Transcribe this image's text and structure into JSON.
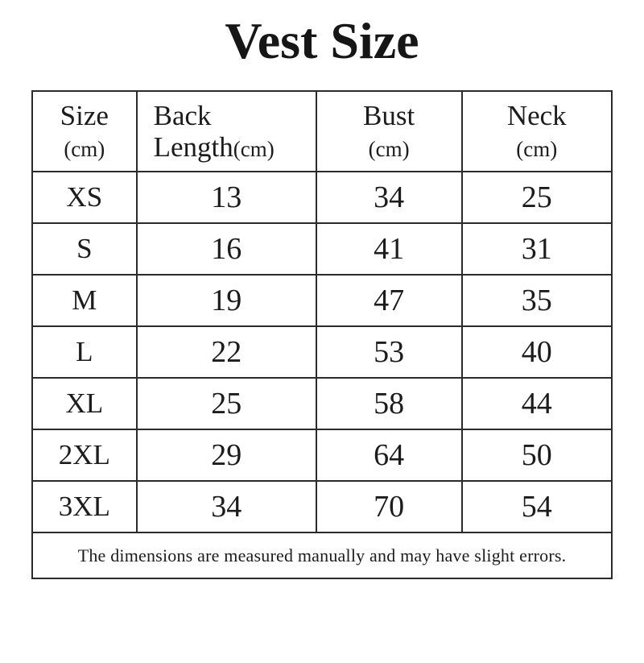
{
  "page": {
    "title": "Vest Size",
    "background_color": "#ffffff",
    "text_color": "#1c1c1c",
    "border_color": "#2b2b2b"
  },
  "table": {
    "header": [
      {
        "line1": "Size",
        "line2": "",
        "unit": "(cm)"
      },
      {
        "line1": "Back",
        "line2": "Length",
        "unit": "(cm)"
      },
      {
        "line1": "Bust",
        "line2": "",
        "unit": "(cm)"
      },
      {
        "line1": "Neck",
        "line2": "",
        "unit": "(cm)"
      }
    ],
    "rows": [
      {
        "size": "XS",
        "back_length": "13",
        "bust": "34",
        "neck": "25"
      },
      {
        "size": "S",
        "back_length": "16",
        "bust": "41",
        "neck": "31"
      },
      {
        "size": "M",
        "back_length": "19",
        "bust": "47",
        "neck": "35"
      },
      {
        "size": "L",
        "back_length": "22",
        "bust": "53",
        "neck": "40"
      },
      {
        "size": "XL",
        "back_length": "25",
        "bust": "58",
        "neck": "44"
      },
      {
        "size": "2XL",
        "back_length": "29",
        "bust": "64",
        "neck": "50"
      },
      {
        "size": "3XL",
        "back_length": "34",
        "bust": "70",
        "neck": "54"
      }
    ],
    "note": "The dimensions are measured manually and may have slight errors."
  },
  "chart_data": {
    "type": "table",
    "title": "Vest Size",
    "columns": [
      "Size (cm)",
      "Back Length(cm)",
      "Bust (cm)",
      "Neck (cm)"
    ],
    "rows": [
      [
        "XS",
        13,
        34,
        25
      ],
      [
        "S",
        16,
        41,
        31
      ],
      [
        "M",
        19,
        47,
        35
      ],
      [
        "L",
        22,
        53,
        40
      ],
      [
        "XL",
        25,
        58,
        44
      ],
      [
        "2XL",
        29,
        64,
        50
      ],
      [
        "3XL",
        34,
        70,
        54
      ]
    ],
    "footnote": "The dimensions are measured manually and may have slight errors."
  }
}
